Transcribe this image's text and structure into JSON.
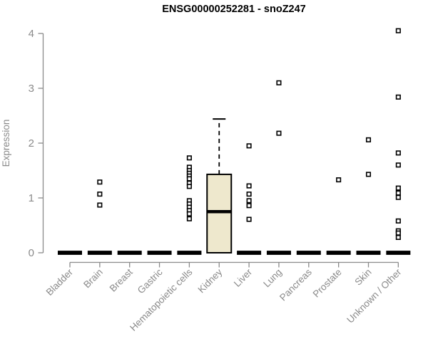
{
  "title": "ENSG00000252281 - snoZ247",
  "chart_data": {
    "type": "boxplot",
    "title": "ENSG00000252281 - snoZ247",
    "xlabel": "",
    "ylabel": "Expression",
    "ylim": [
      0,
      4
    ],
    "yticks": [
      0,
      1,
      2,
      3,
      4
    ],
    "grid": false,
    "legend": null,
    "categories": [
      "Bladder",
      "Brain",
      "Breast",
      "Gastric",
      "Hematopoietic cells",
      "Kidney",
      "Liver",
      "Lung",
      "Pancreas",
      "Prostate",
      "Skin",
      "Unknown / Other"
    ],
    "series": [
      {
        "category": "Bladder",
        "q1": 0,
        "median": 0,
        "q3": 0,
        "whisker_low": 0,
        "whisker_high": 0,
        "outliers": []
      },
      {
        "category": "Brain",
        "q1": 0,
        "median": 0,
        "q3": 0,
        "whisker_low": 0,
        "whisker_high": 0,
        "outliers": [
          1.29,
          1.07,
          0.87
        ]
      },
      {
        "category": "Breast",
        "q1": 0,
        "median": 0,
        "q3": 0,
        "whisker_low": 0,
        "whisker_high": 0,
        "outliers": []
      },
      {
        "category": "Gastric",
        "q1": 0,
        "median": 0,
        "q3": 0,
        "whisker_low": 0,
        "whisker_high": 0,
        "outliers": []
      },
      {
        "category": "Hematopoietic cells",
        "q1": 0,
        "median": 0,
        "q3": 0,
        "whisker_low": 0,
        "whisker_high": 0,
        "outliers": [
          1.73,
          1.56,
          1.5,
          1.45,
          1.4,
          1.35,
          1.27,
          1.21,
          0.95,
          0.89,
          0.83,
          0.77,
          0.71,
          0.62
        ]
      },
      {
        "category": "Kidney",
        "q1": 0,
        "median": 0.75,
        "q3": 1.43,
        "whisker_low": 0,
        "whisker_high": 2.44,
        "outliers": []
      },
      {
        "category": "Liver",
        "q1": 0,
        "median": 0,
        "q3": 0,
        "whisker_low": 0,
        "whisker_high": 0,
        "outliers": [
          1.95,
          1.22,
          1.07,
          0.95,
          0.86,
          0.61
        ]
      },
      {
        "category": "Lung",
        "q1": 0,
        "median": 0,
        "q3": 0,
        "whisker_low": 0,
        "whisker_high": 0,
        "outliers": [
          3.1,
          2.18
        ]
      },
      {
        "category": "Pancreas",
        "q1": 0,
        "median": 0,
        "q3": 0,
        "whisker_low": 0,
        "whisker_high": 0,
        "outliers": []
      },
      {
        "category": "Prostate",
        "q1": 0,
        "median": 0,
        "q3": 0,
        "whisker_low": 0,
        "whisker_high": 0,
        "outliers": [
          1.33
        ]
      },
      {
        "category": "Skin",
        "q1": 0,
        "median": 0,
        "q3": 0,
        "whisker_low": 0,
        "whisker_high": 0,
        "outliers": [
          2.06,
          1.43
        ]
      },
      {
        "category": "Unknown / Other",
        "q1": 0,
        "median": 0,
        "q3": 0,
        "whisker_low": 0,
        "whisker_high": 0,
        "outliers": [
          4.05,
          2.84,
          1.82,
          1.6,
          1.18,
          1.09,
          1.01,
          0.58,
          0.4,
          0.36,
          0.28
        ]
      }
    ]
  },
  "colors": {
    "background": "#FFFFFF",
    "title": "#000000",
    "axis": "#8A8A8A",
    "tick_label": "#8A8A8A",
    "box_fill": "#EEE8CD",
    "box_border": "#000000",
    "median": "#000000",
    "outlier_fill": "#FFFFFF",
    "outlier_stroke": "#000000"
  }
}
